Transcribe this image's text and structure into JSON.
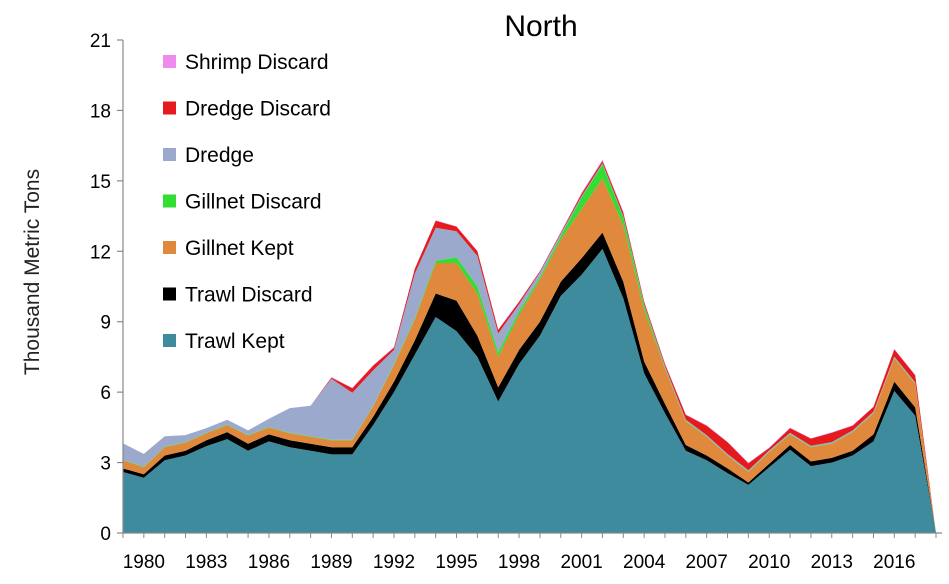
{
  "chart_data": {
    "type": "area",
    "stacked": true,
    "title": "North",
    "xlabel": "",
    "ylabel": "Thousand Metric Tons",
    "ylim": [
      0,
      21
    ],
    "yticks": [
      0,
      3,
      6,
      9,
      12,
      15,
      18,
      21
    ],
    "xticks": [
      1980,
      1983,
      1986,
      1989,
      1992,
      1995,
      1998,
      2001,
      2004,
      2007,
      2010,
      2013,
      2016
    ],
    "xlim": [
      1979,
      2018
    ],
    "grid": false,
    "legend_position": "top-left",
    "x": [
      1979,
      1980,
      1981,
      1982,
      1983,
      1984,
      1985,
      1986,
      1987,
      1988,
      1989,
      1990,
      1991,
      1992,
      1993,
      1994,
      1995,
      1996,
      1997,
      1998,
      1999,
      2000,
      2001,
      2002,
      2003,
      2004,
      2005,
      2006,
      2007,
      2008,
      2009,
      2010,
      2011,
      2012,
      2013,
      2014,
      2015,
      2016,
      2017,
      2018
    ],
    "series": [
      {
        "name": "Trawl Kept",
        "color": "#3E8B9E",
        "values": [
          2.6,
          2.35,
          3.1,
          3.3,
          3.7,
          4.0,
          3.5,
          3.9,
          3.65,
          3.5,
          3.35,
          3.35,
          4.6,
          6.0,
          7.6,
          9.2,
          8.6,
          7.5,
          5.6,
          7.2,
          8.4,
          10.1,
          11.0,
          12.1,
          10.0,
          6.8,
          5.1,
          3.5,
          3.1,
          2.55,
          2.05,
          2.8,
          3.55,
          2.85,
          3.0,
          3.3,
          3.9,
          6.05,
          5.0,
          0
        ]
      },
      {
        "name": "Trawl Discard",
        "color": "#000000",
        "values": [
          0.15,
          0.15,
          0.2,
          0.2,
          0.25,
          0.3,
          0.3,
          0.3,
          0.3,
          0.3,
          0.3,
          0.3,
          0.35,
          0.45,
          0.6,
          1.0,
          1.3,
          0.9,
          0.6,
          0.6,
          0.6,
          0.6,
          0.7,
          0.7,
          0.7,
          0.5,
          0.4,
          0.25,
          0.2,
          0.2,
          0.1,
          0.15,
          0.2,
          0.2,
          0.2,
          0.2,
          0.3,
          0.4,
          0.35,
          0
        ]
      },
      {
        "name": "Gillnet Kept",
        "color": "#E0893D",
        "values": [
          0.35,
          0.3,
          0.35,
          0.35,
          0.3,
          0.3,
          0.35,
          0.3,
          0.3,
          0.3,
          0.3,
          0.3,
          0.45,
          0.7,
          0.9,
          1.3,
          1.6,
          1.8,
          1.3,
          1.5,
          1.8,
          1.8,
          2.1,
          2.3,
          2.4,
          2.2,
          1.5,
          1.0,
          0.8,
          0.55,
          0.45,
          0.5,
          0.45,
          0.6,
          0.6,
          0.8,
          0.9,
          1.0,
          1.0,
          0
        ]
      },
      {
        "name": "Gillnet Discard",
        "color": "#33DD33",
        "values": [
          0.02,
          0.02,
          0.02,
          0.02,
          0.02,
          0.02,
          0.02,
          0.02,
          0.02,
          0.02,
          0.02,
          0.02,
          0.03,
          0.05,
          0.05,
          0.1,
          0.25,
          0.3,
          0.2,
          0.15,
          0.1,
          0.15,
          0.5,
          0.6,
          0.35,
          0.2,
          0.05,
          0.03,
          0.02,
          0.02,
          0.02,
          0.02,
          0.02,
          0.02,
          0.02,
          0.02,
          0.02,
          0.02,
          0.02,
          0
        ]
      },
      {
        "name": "Dredge",
        "color": "#9BA9CC",
        "values": [
          0.7,
          0.55,
          0.45,
          0.3,
          0.2,
          0.2,
          0.2,
          0.35,
          1.05,
          1.3,
          2.6,
          2.0,
          1.5,
          0.6,
          1.9,
          1.4,
          1.1,
          1.3,
          0.8,
          0.3,
          0.2,
          0.1,
          0.05,
          0.05,
          0.05,
          0.05,
          0.05,
          0.05,
          0.05,
          0.05,
          0.05,
          0.05,
          0.05,
          0.05,
          0.05,
          0.05,
          0.05,
          0.05,
          0.05,
          0
        ]
      },
      {
        "name": "Dredge Discard",
        "color": "#E41A1C",
        "values": [
          0,
          0,
          0,
          0,
          0,
          0,
          0,
          0,
          0,
          0,
          0.05,
          0.2,
          0.2,
          0.1,
          0.2,
          0.3,
          0.2,
          0.2,
          0.15,
          0.1,
          0.05,
          0.05,
          0.1,
          0.1,
          0.15,
          0.1,
          0.1,
          0.2,
          0.4,
          0.5,
          0.3,
          0.1,
          0.2,
          0.3,
          0.4,
          0.2,
          0.2,
          0.3,
          0.3,
          0
        ]
      },
      {
        "name": "Shrimp Discard",
        "color": "#EE8CEE",
        "values": [
          0,
          0,
          0,
          0,
          0,
          0,
          0,
          0,
          0,
          0,
          0.02,
          0.02,
          0.02,
          0.02,
          0.02,
          0.02,
          0.02,
          0.02,
          0.02,
          0.02,
          0.02,
          0.02,
          0.05,
          0.05,
          0.05,
          0.02,
          0.02,
          0.02,
          0.02,
          0.02,
          0.02,
          0.02,
          0.02,
          0.02,
          0.02,
          0.02,
          0.02,
          0.02,
          0.02,
          0
        ]
      }
    ],
    "legend_order": [
      "Shrimp Discard",
      "Dredge Discard",
      "Dredge",
      "Gillnet Discard",
      "Gillnet Kept",
      "Trawl Discard",
      "Trawl Kept"
    ]
  }
}
